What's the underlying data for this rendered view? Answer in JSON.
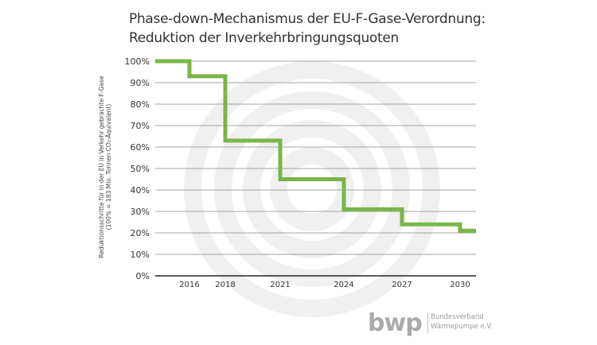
{
  "chart_data": {
    "type": "line",
    "subtype": "step",
    "title": "Phase-down-Mechanismus der EU-F-Gase-Verordnung:",
    "subtitle": "Reduktion der Inverkehrbringungsquoten",
    "ylabel": "Reduktionsschritte für in der EU in Verkehr gebrachte F-Gase",
    "ylabel2": "(100% = 183 Mio. Tonnen CO₂-Äquivalent)",
    "ylim": [
      0,
      100
    ],
    "yticks": [
      "0%",
      "10%",
      "20%",
      "30%",
      "40%",
      "50%",
      "60%",
      "70%",
      "80%",
      "90%",
      "100%"
    ],
    "xticks": [
      "2016",
      "2018",
      "2021",
      "2024",
      "2027",
      "2030"
    ],
    "grid": true,
    "x": [
      2015,
      2016,
      2018,
      2021,
      2024,
      2027,
      2030
    ],
    "values": [
      100,
      93,
      63,
      45,
      31,
      24,
      21
    ],
    "color": "#7ab648"
  },
  "logo": {
    "mark": "bwp",
    "line1": "Bundesverband",
    "line2": "Wärmepumpe e.V."
  }
}
